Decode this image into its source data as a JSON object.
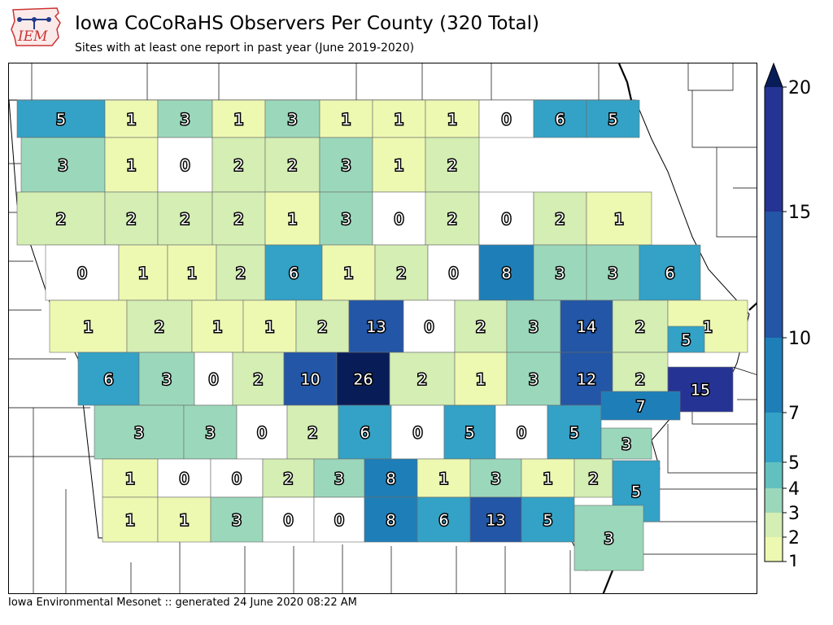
{
  "header": {
    "title": "Iowa CoCoRaHS Observers Per County (320 Total)",
    "subtitle": "Sites with at least one report in past year (June 2019-2020)",
    "logo_text": "IEM"
  },
  "footer": {
    "text": "Iowa Environmental Mesonet :: generated 24 June 2020 08:22 AM"
  },
  "map": {
    "region": "Iowa",
    "label_color": "#ffffff",
    "label_outline": "#000000",
    "counties": [
      [
        5,
        1,
        3,
        1,
        3,
        1,
        1,
        1,
        0,
        6,
        5
      ],
      [
        3,
        1,
        0,
        2,
        2,
        3,
        1,
        2
      ],
      [
        2,
        2,
        2,
        2,
        1,
        3,
        0,
        2,
        0,
        2,
        1
      ],
      [
        0,
        1,
        1,
        2,
        6,
        1,
        2,
        0,
        8,
        3,
        3,
        6
      ],
      [
        1,
        2,
        1,
        1,
        2,
        13,
        0,
        2,
        3,
        14,
        2,
        1
      ],
      [
        6,
        3,
        0,
        2,
        10,
        26,
        2,
        1,
        3,
        12,
        2,
        5,
        15
      ],
      [
        3,
        3,
        0,
        2,
        6,
        0,
        5,
        0,
        5,
        7,
        3
      ],
      [
        1,
        0,
        0,
        2,
        3,
        8,
        1,
        3,
        1,
        2,
        5
      ],
      [
        1,
        1,
        3,
        0,
        0,
        8,
        6,
        13,
        5,
        3
      ]
    ]
  },
  "colorbar": {
    "ticks": [
      "1",
      "2",
      "3",
      "4",
      "5",
      "7",
      "10",
      "15",
      "20"
    ],
    "bins": [
      {
        "min": 1,
        "max": 2,
        "color": "#edf8b1"
      },
      {
        "min": 2,
        "max": 3,
        "color": "#d4eeb3"
      },
      {
        "min": 3,
        "max": 4,
        "color": "#9bd8bb"
      },
      {
        "min": 4,
        "max": 5,
        "color": "#62c1bf"
      },
      {
        "min": 5,
        "max": 7,
        "color": "#33a2c6"
      },
      {
        "min": 7,
        "max": 10,
        "color": "#1e7fb8"
      },
      {
        "min": 10,
        "max": 15,
        "color": "#2356a6"
      },
      {
        "min": 15,
        "max": 20,
        "color": "#253494"
      },
      {
        "min": 20,
        "max": 999,
        "color": "#081d58"
      }
    ]
  }
}
